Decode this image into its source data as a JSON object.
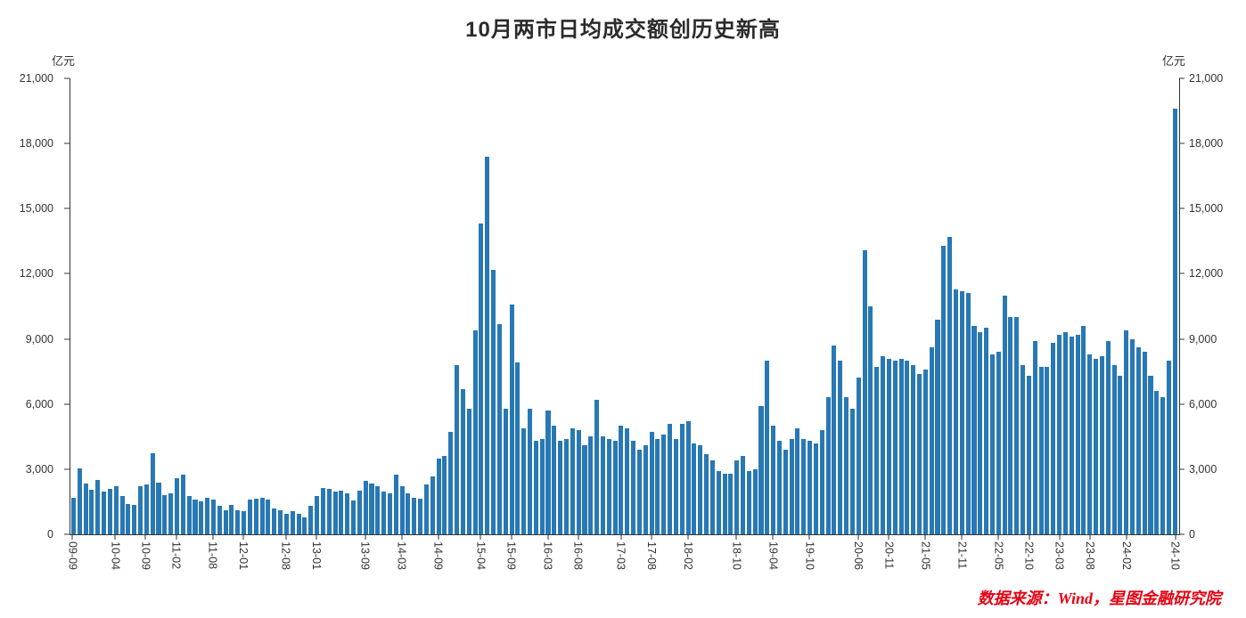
{
  "title": "10月两市日均成交额创历史新高",
  "axis_unit_left": "亿元",
  "axis_unit_right": "亿元",
  "source_note": "数据来源：Wind，星图金融研究院",
  "colors": {
    "bar": "#2878b5",
    "source_text": "#e60012",
    "axis_text": "#333333",
    "title_text": "#2b2b2b"
  },
  "chart_data": {
    "type": "bar",
    "title": "10月两市日均成交额创历史新高",
    "xlabel": "",
    "ylabel": "亿元",
    "ylim": [
      0,
      21000
    ],
    "ytick_interval": 3000,
    "ytick_labels": [
      "0",
      "3,000",
      "6,000",
      "9,000",
      "12,000",
      "15,000",
      "18,000",
      "21,000"
    ],
    "grid": false,
    "legend": "none",
    "start_month": "2009-09",
    "end_month": "2024-10",
    "x_tick_labels": [
      "09-09",
      "10-04",
      "10-09",
      "11-02",
      "11-08",
      "12-01",
      "12-08",
      "13-01",
      "13-09",
      "14-03",
      "14-09",
      "15-04",
      "15-09",
      "16-03",
      "16-08",
      "17-03",
      "17-08",
      "18-02",
      "18-10",
      "19-04",
      "19-10",
      "20-06",
      "20-11",
      "21-05",
      "21-11",
      "22-05",
      "22-10",
      "23-03",
      "23-08",
      "24-02",
      "24-10"
    ],
    "x_tick_indices": [
      0,
      7,
      12,
      17,
      23,
      28,
      35,
      40,
      48,
      54,
      60,
      67,
      72,
      78,
      83,
      90,
      95,
      101,
      109,
      115,
      121,
      129,
      134,
      140,
      146,
      152,
      157,
      162,
      167,
      173,
      181
    ],
    "values": [
      1700,
      3050,
      2350,
      2050,
      2500,
      1950,
      2100,
      2200,
      1750,
      1400,
      1350,
      2200,
      2300,
      3750,
      2400,
      1800,
      1900,
      2600,
      2750,
      1750,
      1600,
      1500,
      1700,
      1600,
      1300,
      1100,
      1350,
      1100,
      1050,
      1600,
      1650,
      1700,
      1600,
      1200,
      1100,
      950,
      1050,
      950,
      800,
      1300,
      1750,
      2150,
      2100,
      1950,
      2000,
      1900,
      1550,
      2000,
      2450,
      2350,
      2200,
      1950,
      1900,
      2750,
      2200,
      1900,
      1700,
      1650,
      2300,
      2650,
      3500,
      3600,
      4700,
      7800,
      6700,
      5800,
      9400,
      14300,
      17400,
      12200,
      9700,
      5800,
      10600,
      7900,
      4900,
      5800,
      4300,
      4400,
      5700,
      5000,
      4300,
      4400,
      4900,
      4800,
      4100,
      4500,
      6200,
      4500,
      4400,
      4300,
      5000,
      4900,
      4300,
      3900,
      4100,
      4700,
      4400,
      4600,
      5100,
      4400,
      5100,
      5200,
      4200,
      4100,
      3700,
      3400,
      2900,
      2800,
      2800,
      3400,
      3600,
      2900,
      3000,
      5900,
      8000,
      5000,
      4300,
      3900,
      4400,
      4900,
      4400,
      4300,
      4200,
      4800,
      6300,
      8700,
      8000,
      6300,
      5800,
      7200,
      13100,
      10500,
      7700,
      8200,
      8100,
      8000,
      8100,
      8000,
      7800,
      7400,
      7600,
      8600,
      9900,
      13300,
      13700,
      11300,
      11200,
      11100,
      9600,
      9300,
      9500,
      8300,
      8400,
      11000,
      10000,
      10000,
      7800,
      7300,
      8900,
      7700,
      7700,
      8800,
      9200,
      9300,
      9100,
      9200,
      9600,
      8300,
      8100,
      8200,
      8900,
      7800,
      7300,
      9400,
      9000,
      8600,
      8400,
      7300,
      6600,
      6300,
      8000,
      19600
    ]
  }
}
